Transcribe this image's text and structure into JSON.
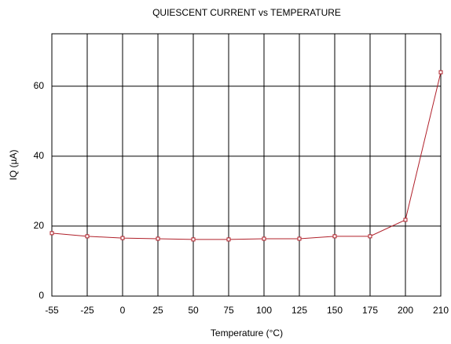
{
  "chart_data": {
    "type": "line",
    "title": "QUIESCENT CURRENT vs TEMPERATURE",
    "x_label": "Temperature (°C)",
    "y_label": "IQ (µA)",
    "categories": [
      "-55",
      "-25",
      "0",
      "25",
      "50",
      "75",
      "100",
      "125",
      "150",
      "175",
      "200",
      "210"
    ],
    "series": [
      {
        "name": "IQ",
        "color": "#b0202a",
        "values": [
          18.0,
          17.1,
          16.6,
          16.4,
          16.2,
          16.2,
          16.4,
          16.4,
          17.1,
          17.1,
          21.8,
          64.0
        ]
      }
    ],
    "ylim": [
      0,
      75
    ],
    "yticks": [
      0,
      20,
      40,
      60
    ],
    "grid": true
  }
}
